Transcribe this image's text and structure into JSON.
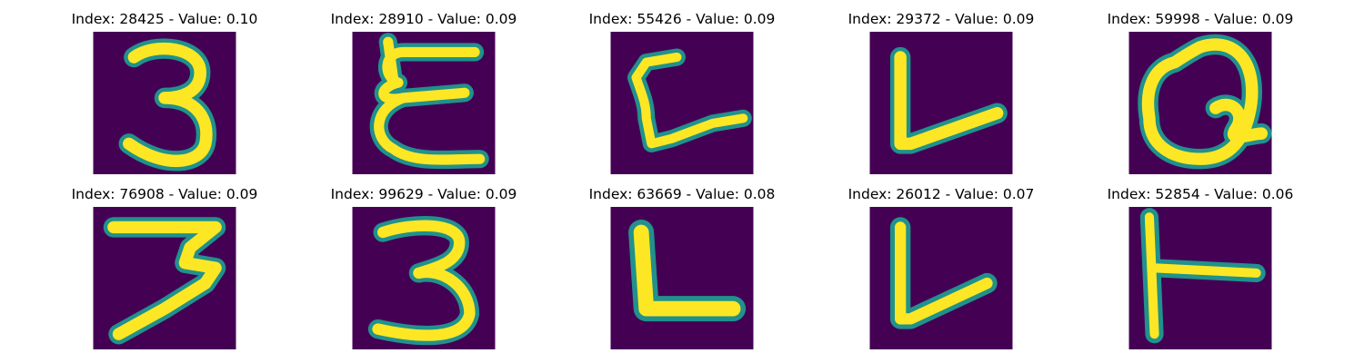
{
  "panels": [
    {
      "title": "Index: 28425 - Value: 0.10",
      "glyph": "digit-3"
    },
    {
      "title": "Index: 28910 - Value: 0.09",
      "glyph": "letter-E-curly"
    },
    {
      "title": "Index: 55426 - Value: 0.09",
      "glyph": "letter-L-curved"
    },
    {
      "title": "Index: 29372 - Value: 0.09",
      "glyph": "letter-L-slanted"
    },
    {
      "title": "Index: 59998 - Value: 0.09",
      "glyph": "letter-Q"
    },
    {
      "title": "Index: 76908 - Value: 0.09",
      "glyph": "digit-7-3"
    },
    {
      "title": "Index: 99629 - Value: 0.09",
      "glyph": "digit-3"
    },
    {
      "title": "Index: 63669 - Value: 0.08",
      "glyph": "letter-L"
    },
    {
      "title": "Index: 26012 - Value: 0.07",
      "glyph": "letter-L-slanted"
    },
    {
      "title": "Index: 52854 - Value: 0.06",
      "glyph": "letter-T-rotated"
    }
  ],
  "colors": {
    "background": "#440154",
    "stroke_edge": "#21918c",
    "stroke_core": "#fde725"
  }
}
